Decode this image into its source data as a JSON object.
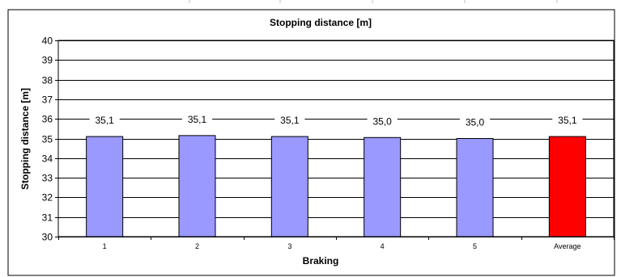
{
  "chart_data": {
    "type": "bar",
    "title": "Stopping distance [m]",
    "xlabel": "Braking",
    "ylabel": "Stopping distance [m]",
    "categories": [
      "1",
      "2",
      "3",
      "4",
      "5",
      "Average"
    ],
    "values": [
      35.1,
      35.15,
      35.1,
      35.05,
      35.0,
      35.1
    ],
    "data_labels": [
      "35,1",
      "35,1",
      "35,1",
      "35,0",
      "35,0",
      "35,1"
    ],
    "ylim": [
      30,
      40
    ],
    "yticks": [
      "30",
      "31",
      "32",
      "33",
      "34",
      "35",
      "36",
      "37",
      "38",
      "39",
      "40"
    ],
    "grid": true,
    "legend": "none",
    "colors": {
      "bar": "#9999ff",
      "highlight": "#ff0000",
      "highlight_category": "Average",
      "grid": "#000000"
    }
  }
}
